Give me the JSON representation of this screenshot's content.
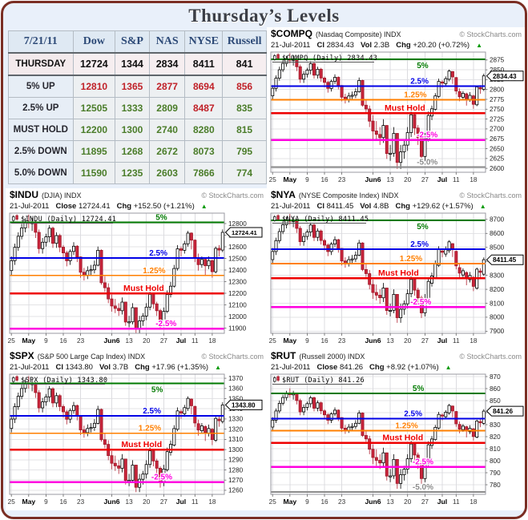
{
  "page": {
    "title": "Thursday’s Levels"
  },
  "table": {
    "date_header": "7/21/11",
    "columns": [
      "Dow",
      "S&P",
      "NAS",
      "NYSE",
      "Russell"
    ],
    "rows": [
      {
        "label": "THURSDAY",
        "values": [
          "12724",
          "1344",
          "2834",
          "8411",
          "841"
        ],
        "colors": [
          "k",
          "k",
          "k",
          "k",
          "k"
        ]
      },
      {
        "label": "5% UP",
        "values": [
          "12810",
          "1365",
          "2877",
          "8694",
          "856"
        ],
        "colors": [
          "r",
          "r",
          "r",
          "r",
          "r"
        ]
      },
      {
        "label": "2.5% UP",
        "values": [
          "12505",
          "1333",
          "2809",
          "8487",
          "835"
        ],
        "colors": [
          "g",
          "g",
          "g",
          "r",
          "g"
        ]
      },
      {
        "label": "MUST HOLD",
        "values": [
          "12200",
          "1300",
          "2740",
          "8280",
          "815"
        ],
        "colors": [
          "g",
          "g",
          "g",
          "g",
          "g"
        ]
      },
      {
        "label": "2.5% DOWN",
        "values": [
          "11895",
          "1268",
          "2672",
          "8073",
          "795"
        ],
        "colors": [
          "g",
          "g",
          "g",
          "g",
          "g"
        ]
      },
      {
        "label": "5.0% DOWN",
        "values": [
          "11590",
          "1235",
          "2603",
          "7866",
          "774"
        ],
        "colors": [
          "g",
          "g",
          "g",
          "g",
          "g"
        ]
      }
    ]
  },
  "colors": {
    "line_green": "#007a00",
    "line_blue": "#0000e6",
    "line_orange": "#ff7f00",
    "line_red": "#ee0000",
    "line_magenta": "#ff00e0",
    "line_gray": "#8c8c8c",
    "candle_down_fill": "#c9253c",
    "candle_down_stroke": "#9e1a28",
    "candle_up_fill": "#ffffff",
    "candle_up_stroke": "#000000",
    "frame": "#7a2e23",
    "table_red": "#c02128",
    "table_green": "#4b7d2a"
  },
  "chart_data": {
    "type": "candlestick",
    "x_ticks": [
      {
        "i": 0,
        "l": "25",
        "b": 0
      },
      {
        "i": 5,
        "l": "May",
        "b": 1
      },
      {
        "i": 10,
        "l": "9",
        "b": 0
      },
      {
        "i": 15,
        "l": "16",
        "b": 0
      },
      {
        "i": 20,
        "l": "23",
        "b": 0
      },
      {
        "i": 29,
        "l": "Jun6",
        "b": 1
      },
      {
        "i": 34,
        "l": "13",
        "b": 0
      },
      {
        "i": 39,
        "l": "20",
        "b": 0
      },
      {
        "i": 44,
        "l": "27",
        "b": 0
      },
      {
        "i": 49,
        "l": "Jul",
        "b": 1
      },
      {
        "i": 53,
        "l": "11",
        "b": 0
      },
      {
        "i": 58,
        "l": "18",
        "b": 0
      }
    ],
    "candles_ohlc_ratio": [
      [
        1.016,
        1.026,
        1.013,
        1.023
      ],
      [
        1.023,
        1.035,
        1.02,
        1.0324
      ],
      [
        1.0324,
        1.043,
        1.03,
        1.0402
      ],
      [
        1.0402,
        1.049,
        1.038,
        1.0461
      ],
      [
        1.0461,
        1.053,
        1.043,
        1.05
      ],
      [
        1.05,
        1.0555,
        1.046,
        1.0498
      ],
      [
        1.0498,
        1.053,
        1.044,
        1.0498
      ],
      [
        1.0498,
        1.051,
        1.039,
        1.043
      ],
      [
        1.043,
        1.045,
        1.028,
        1.0315
      ],
      [
        1.0315,
        1.039,
        1.028,
        1.036
      ],
      [
        1.036,
        1.042,
        1.033,
        1.0398
      ],
      [
        1.0398,
        1.048,
        1.036,
        1.0459
      ],
      [
        1.0459,
        1.047,
        1.032,
        1.0352
      ],
      [
        1.0352,
        1.043,
        1.032,
        1.0407
      ],
      [
        1.0407,
        1.042,
        1.029,
        1.0325
      ],
      [
        1.0325,
        1.034,
        1.024,
        1.0285
      ],
      [
        1.0285,
        1.03,
        1.019,
        1.0229
      ],
      [
        1.0229,
        1.031,
        1.02,
        1.0295
      ],
      [
        1.0295,
        1.036,
        1.027,
        1.0332
      ],
      [
        1.0332,
        1.034,
        1.022,
        1.0256
      ],
      [
        1.0256,
        1.026,
        1.011,
        1.0148
      ],
      [
        1.0148,
        1.018,
        1.009,
        1.0128
      ],
      [
        1.0128,
        1.019,
        1.01,
        1.0159
      ],
      [
        1.0159,
        1.02,
        1.013,
        1.0166
      ],
      [
        1.0166,
        1.023,
        1.014,
        1.0198
      ],
      [
        1.0198,
        1.033,
        1.019,
        1.0303
      ],
      [
        1.0303,
        1.031,
        1.006,
        1.0074
      ],
      [
        1.0074,
        1.012,
        1.001,
        1.0039
      ],
      [
        1.0039,
        1.007,
        0.993,
        0.996
      ],
      [
        0.996,
        0.999,
        0.987,
        0.991
      ],
      [
        0.991,
        0.996,
        0.986,
        0.9893
      ],
      [
        0.9893,
        0.993,
        0.984,
        0.9877
      ],
      [
        0.9877,
        0.997,
        0.985,
        0.9938
      ],
      [
        0.9938,
        0.994,
        0.977,
        0.9797
      ],
      [
        0.9797,
        0.984,
        0.976,
        0.9798
      ],
      [
        0.9798,
        0.993,
        0.978,
        0.9898
      ],
      [
        0.9898,
        0.99,
        0.972,
        0.9752
      ],
      [
        0.9752,
        0.984,
        0.972,
        0.9805
      ],
      [
        0.9805,
        0.986,
        0.977,
        0.9839
      ],
      [
        0.9839,
        0.993,
        0.981,
        0.9902
      ],
      [
        0.9902,
        1.002,
        0.988,
        0.9992
      ],
      [
        0.9992,
        1.0,
        0.989,
        0.9925
      ],
      [
        0.9925,
        0.994,
        0.984,
        0.9877
      ],
      [
        0.9877,
        0.989,
        0.975,
        0.9782
      ],
      [
        0.9782,
        0.99,
        0.976,
        0.9872
      ],
      [
        0.9872,
        1.002,
        0.986,
        0.9991
      ],
      [
        0.9991,
        1.008,
        0.997,
        1.005
      ],
      [
        1.005,
        1.02,
        1.004,
        1.0175
      ],
      [
        1.0175,
        1.034,
        1.016,
        1.0314
      ],
      [
        1.0314,
        1.033,
        1.026,
        1.0303
      ],
      [
        1.0303,
        1.037,
        1.028,
        1.0349
      ],
      [
        1.0349,
        1.044,
        1.033,
        1.0425
      ],
      [
        1.0425,
        1.043,
        1.031,
        1.0375
      ],
      [
        1.0375,
        1.038,
        1.022,
        1.025
      ],
      [
        1.025,
        1.028,
        1.016,
        1.0202
      ],
      [
        1.0202,
        1.026,
        1.018,
        1.0239
      ],
      [
        1.0239,
        1.025,
        1.013,
        1.0194
      ],
      [
        1.0194,
        1.026,
        1.017,
        1.023
      ],
      [
        1.023,
        1.024,
        1.011,
        1.0152
      ],
      [
        1.0152,
        1.033,
        1.014,
        1.0317
      ],
      [
        1.0317,
        1.034,
        1.026,
        1.0305
      ],
      [
        1.0305,
        1.045,
        1.029,
        1.043
      ]
    ],
    "charts": [
      {
        "symbol": "$COMPQ",
        "name": "(Nasdaq Composite) INDX",
        "credit": "© StockCharts.com",
        "date": "21-Jul-2011",
        "close_label": "Cl",
        "close_text": "2834.43",
        "vol_label": "Vol",
        "vol_text": "2.3B",
        "chg_label": "Chg",
        "chg_text": "+20.20 (+0.72%)",
        "legend": "$COMPQ (Daily) 2834.43",
        "badge": "2834.43",
        "close": 2834.43,
        "must_hold": 2740,
        "downside_scale": 1.84,
        "drift": -0.0085,
        "ylim": [
          2590,
          2895
        ],
        "yticks": [
          2600,
          2625,
          2650,
          2675,
          2700,
          2725,
          2750,
          2775,
          2800,
          2825,
          2850,
          2875
        ],
        "levels": [
          {
            "label": "5%",
            "value": 2877,
            "color": "line_green",
            "width": 2,
            "x": 0.68,
            "pos": "below"
          },
          {
            "label": "2.5%",
            "value": 2809,
            "color": "line_blue",
            "width": 2,
            "x": 0.65,
            "pos": "above"
          },
          {
            "label": "1.25%",
            "value": 2774,
            "color": "line_orange",
            "width": 1.6,
            "x": 0.62,
            "pos": "above"
          },
          {
            "label": "Must Hold",
            "value": 2740,
            "color": "line_red",
            "width": 2.5,
            "x": 0.53,
            "pos": "above"
          },
          {
            "label": "-2.5%",
            "value": 2672,
            "color": "line_magenta",
            "width": 2.5,
            "x": 0.68,
            "pos": "above"
          },
          {
            "label": "-5.0%",
            "value": 2603,
            "color": "line_gray",
            "width": 2.2,
            "x": 0.68,
            "pos": "above"
          }
        ]
      },
      {
        "symbol": "$INDU",
        "name": "(DJIA) INDX",
        "credit": "© StockCharts.com",
        "date": "21-Jul-2011",
        "close_label": "Close",
        "close_text": "12724.41",
        "vol_label": null,
        "vol_text": null,
        "chg_label": "Chg",
        "chg_text": "+152.50 (+1.21%)",
        "legend": "$INDU (Daily) 12724.41",
        "badge": "12724.41",
        "close": 12724.41,
        "must_hold": 12200,
        "downside_scale": 1.0,
        "drift": 0.0,
        "ylim": [
          11855,
          12890
        ],
        "yticks": [
          11900,
          12000,
          12100,
          12200,
          12300,
          12400,
          12500,
          12600,
          12700,
          12800
        ],
        "levels": [
          {
            "label": "5%",
            "value": 12810,
            "color": "line_green",
            "width": 2,
            "x": 0.68,
            "pos": "above"
          },
          {
            "label": "2.5%",
            "value": 12505,
            "color": "line_blue",
            "width": 2,
            "x": 0.65,
            "pos": "above"
          },
          {
            "label": "1.25%",
            "value": 12353,
            "color": "line_orange",
            "width": 1.6,
            "x": 0.62,
            "pos": "above"
          },
          {
            "label": "Must Hold",
            "value": 12200,
            "color": "line_red",
            "width": 2.5,
            "x": 0.53,
            "pos": "above"
          },
          {
            "label": "-2.5%",
            "value": 11895,
            "color": "line_magenta",
            "width": 2.5,
            "x": 0.68,
            "pos": "above"
          }
        ]
      },
      {
        "symbol": "$NYA",
        "name": "(NYSE Composite Index) INDX",
        "credit": "© StockCharts.com",
        "date": "21-Jul-2011",
        "close_label": "Cl",
        "close_text": "8411.45",
        "vol_label": "Vol",
        "vol_text": "4.8B",
        "chg_label": "Chg",
        "chg_text": "+129.62 (+1.57%)",
        "legend": "$NYA (Daily) 8411.45",
        "badge": "8411.45",
        "close": 8411.45,
        "must_hold": 8280,
        "downside_scale": 1.38,
        "drift": -0.0271,
        "ylim": [
          7885,
          8745
        ],
        "yticks": [
          7900,
          8000,
          8100,
          8200,
          8300,
          8400,
          8500,
          8600,
          8700
        ],
        "levels": [
          {
            "label": "5%",
            "value": 8694,
            "color": "line_green",
            "width": 2,
            "x": 0.68,
            "pos": "below"
          },
          {
            "label": "2.5%",
            "value": 8487,
            "color": "line_blue",
            "width": 2,
            "x": 0.65,
            "pos": "above"
          },
          {
            "label": "1.25%",
            "value": 8384,
            "color": "line_orange",
            "width": 1.6,
            "x": 0.6,
            "pos": "above"
          },
          {
            "label": "Must Hold",
            "value": 8280,
            "color": "line_red",
            "width": 2.5,
            "x": 0.5,
            "pos": "above"
          },
          {
            "label": "-2.5%",
            "value": 8073,
            "color": "line_magenta",
            "width": 2.5,
            "x": 0.65,
            "pos": "above"
          }
        ]
      },
      {
        "symbol": "$SPX",
        "name": "(S&P 500 Large Cap Index) INDX",
        "credit": "© StockCharts.com",
        "date": "21-Jul-2011",
        "close_label": "Cl",
        "close_text": "1343.80",
        "vol_label": "Vol",
        "vol_text": "3.7B",
        "chg_label": "Chg",
        "chg_text": "+17.96 (+1.35%)",
        "legend": "$SPX (Daily) 1343.80",
        "badge": "1343.80",
        "close": 1343.8,
        "must_hold": 1300,
        "downside_scale": 1.15,
        "drift": -0.0093,
        "ylim": [
          1256,
          1374
        ],
        "yticks": [
          1260,
          1270,
          1280,
          1290,
          1300,
          1310,
          1320,
          1330,
          1340,
          1350,
          1360,
          1370
        ],
        "levels": [
          {
            "label": "5%",
            "value": 1365,
            "color": "line_green",
            "width": 2,
            "x": 0.66,
            "pos": "below"
          },
          {
            "label": "2.5%",
            "value": 1333,
            "color": "line_blue",
            "width": 2,
            "x": 0.62,
            "pos": "above"
          },
          {
            "label": "1.25%",
            "value": 1316,
            "color": "line_orange",
            "width": 1.6,
            "x": 0.6,
            "pos": "above"
          },
          {
            "label": "Must Hold",
            "value": 1300,
            "color": "line_red",
            "width": 2.5,
            "x": 0.52,
            "pos": "above"
          },
          {
            "label": "-2.5%",
            "value": 1268,
            "color": "line_magenta",
            "width": 2.5,
            "x": 0.66,
            "pos": "above"
          }
        ]
      },
      {
        "symbol": "$RUT",
        "name": "(Russell 2000) INDX",
        "credit": "© StockCharts.com",
        "date": "21-Jul-2011",
        "close_label": "Close",
        "close_text": "841.26",
        "vol_label": null,
        "vol_text": null,
        "chg_label": "Chg",
        "chg_text": "+8.92 (+1.07%)",
        "legend": "$RUT (Daily) 841.26",
        "badge": "841.26",
        "close": 841.26,
        "must_hold": 815,
        "downside_scale": 1.68,
        "drift": -0.0108,
        "ylim": [
          772,
          872
        ],
        "yticks": [
          780,
          790,
          800,
          810,
          820,
          830,
          840,
          850,
          860,
          870
        ],
        "levels": [
          {
            "label": "5%",
            "value": 856,
            "color": "line_green",
            "width": 2,
            "x": 0.66,
            "pos": "above"
          },
          {
            "label": "2.5%",
            "value": 835,
            "color": "line_blue",
            "width": 2,
            "x": 0.62,
            "pos": "above"
          },
          {
            "label": "1.25%",
            "value": 825,
            "color": "line_orange",
            "width": 1.6,
            "x": 0.58,
            "pos": "above"
          },
          {
            "label": "Must Hold",
            "value": 815,
            "color": "line_red",
            "width": 2.5,
            "x": 0.52,
            "pos": "above"
          },
          {
            "label": "-2.5%",
            "value": 795,
            "color": "line_magenta",
            "width": 2.5,
            "x": 0.66,
            "pos": "above"
          },
          {
            "label": "-5.0%",
            "value": 774,
            "color": "line_gray",
            "width": 2.2,
            "x": 0.66,
            "pos": "above"
          }
        ]
      }
    ]
  }
}
